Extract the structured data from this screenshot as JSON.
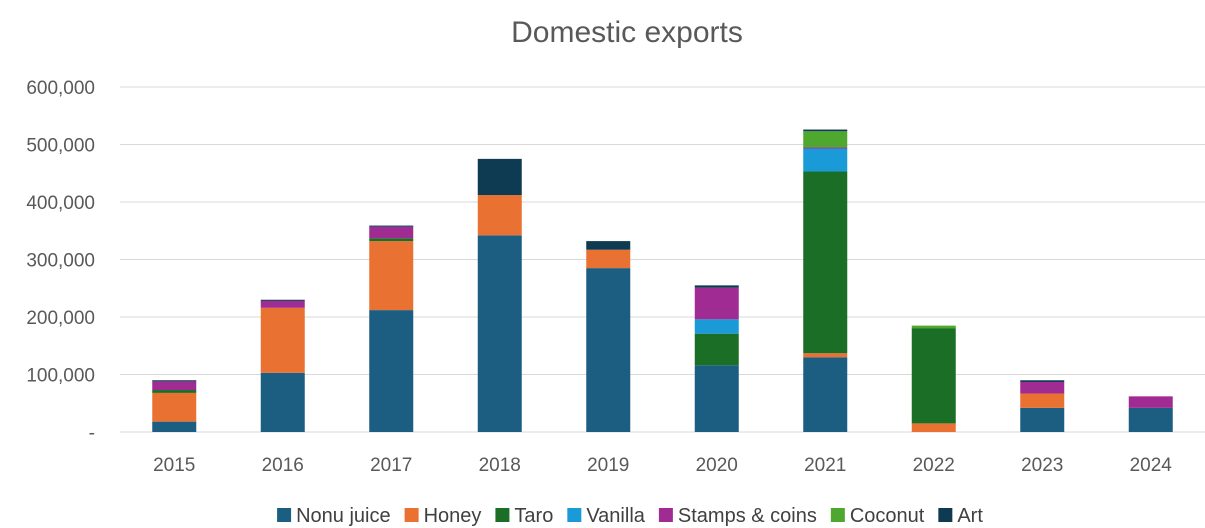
{
  "chart_data": {
    "type": "bar",
    "stacked": true,
    "title": "Domestic exports",
    "xlabel": "",
    "ylabel": "",
    "categories": [
      "2015",
      "2016",
      "2017",
      "2018",
      "2019",
      "2020",
      "2021",
      "2022",
      "2023",
      "2024"
    ],
    "ylim": [
      0,
      600000
    ],
    "y_ticks": [
      0,
      100000,
      200000,
      300000,
      400000,
      500000,
      600000
    ],
    "y_tick_labels": [
      "-",
      "100,000",
      "200,000",
      "300,000",
      "400,000",
      "500,000",
      "600,000"
    ],
    "grid": true,
    "legend_position": "bottom",
    "series": [
      {
        "name": "Nonu juice",
        "color": "#1b5e82",
        "values": [
          18000,
          103000,
          212000,
          342000,
          285000,
          116000,
          130000,
          0,
          42000,
          42000
        ]
      },
      {
        "name": "Honey",
        "color": "#e97132",
        "values": [
          50000,
          113000,
          120000,
          70000,
          32000,
          0,
          7000,
          15000,
          25000,
          0
        ]
      },
      {
        "name": "Taro",
        "color": "#1a6e26",
        "values": [
          5000,
          0,
          5000,
          0,
          0,
          55000,
          316000,
          165000,
          0,
          0
        ]
      },
      {
        "name": "Vanilla",
        "color": "#1a9ad6",
        "values": [
          0,
          0,
          0,
          0,
          0,
          25000,
          40000,
          0,
          0,
          0
        ]
      },
      {
        "name": "Stamps & coins",
        "color": "#a02b93",
        "values": [
          15000,
          12000,
          20000,
          0,
          0,
          55000,
          2000,
          0,
          20000,
          20000
        ]
      },
      {
        "name": "Coconut",
        "color": "#4ea72e",
        "values": [
          0,
          0,
          0,
          0,
          0,
          0,
          28000,
          5000,
          0,
          0
        ]
      },
      {
        "name": "Art",
        "color": "#0e3a52",
        "values": [
          2000,
          2000,
          2000,
          63000,
          15000,
          4000,
          3000,
          0,
          3000,
          0
        ]
      }
    ]
  }
}
